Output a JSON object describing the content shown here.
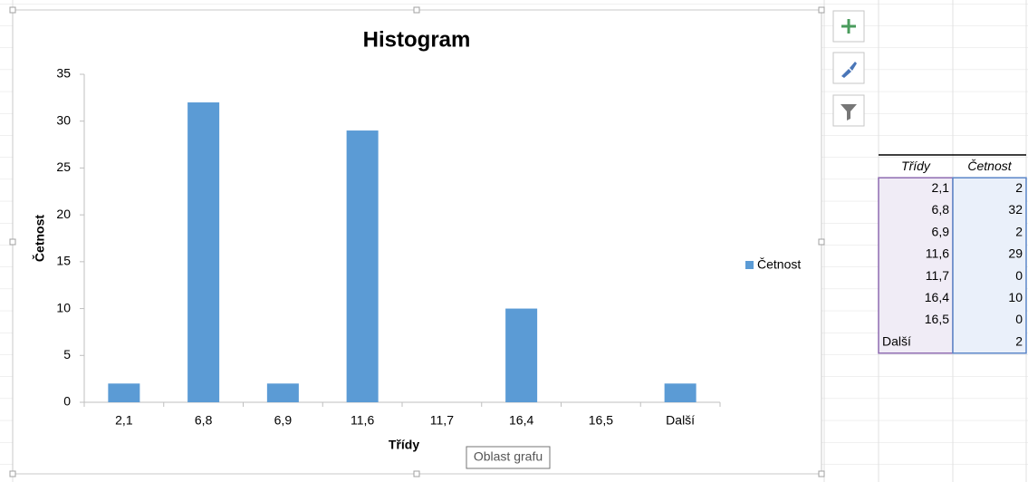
{
  "chart_data": {
    "type": "bar",
    "title": "Histogram",
    "x_label": "Třídy",
    "y_label": "Četnost",
    "categories": [
      "2,1",
      "6,8",
      "6,9",
      "11,6",
      "11,7",
      "16,4",
      "16,5",
      "Další"
    ],
    "series": [
      {
        "name": "Četnost",
        "color": "#5b9bd5",
        "values": [
          2,
          32,
          2,
          29,
          0,
          10,
          0,
          2
        ]
      }
    ],
    "ylim": [
      0,
      35
    ],
    "yticks": [
      0,
      5,
      10,
      15,
      20,
      25,
      30,
      35
    ],
    "legend": "right"
  },
  "table": {
    "header": [
      "Třídy",
      "Četnost"
    ],
    "rows": [
      [
        "2,1",
        "2"
      ],
      [
        "6,8",
        "32"
      ],
      [
        "6,9",
        "2"
      ],
      [
        "11,6",
        "29"
      ],
      [
        "11,7",
        "0"
      ],
      [
        "16,4",
        "10"
      ],
      [
        "16,5",
        "0"
      ],
      [
        "Další",
        "2"
      ]
    ]
  },
  "tooltip": "Oblast grafu"
}
